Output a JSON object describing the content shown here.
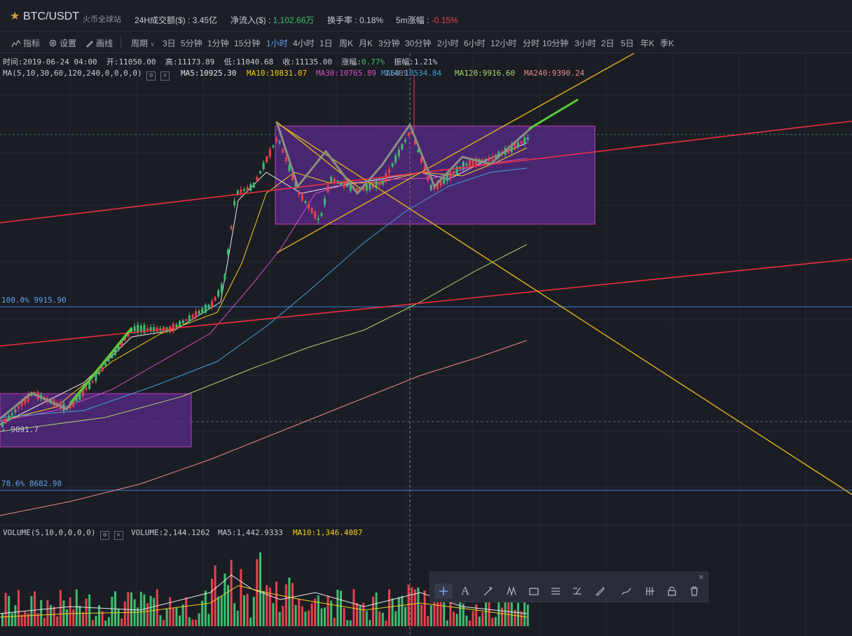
{
  "header": {
    "pair": "BTC/USDT",
    "site": "火币全球站",
    "stats": [
      {
        "label": "24H成交额($) : ",
        "value": "3.45亿",
        "tone": "v"
      },
      {
        "label": "净流入($) : ",
        "value": "1,102.66万",
        "tone": "g"
      },
      {
        "label": "换手率 : ",
        "value": "0.18%",
        "tone": "v"
      },
      {
        "label": "5m涨幅 : ",
        "value": "-0.15%",
        "tone": "r"
      }
    ]
  },
  "toolbar": {
    "indicator": "指标",
    "settings": "设置",
    "draw": "画线",
    "period": "周期",
    "periods": [
      "3日",
      "5分钟",
      "1分钟",
      "15分钟",
      "1小时",
      "4小时",
      "1日",
      "周K",
      "月K",
      "3分钟",
      "30分钟",
      "2小时",
      "6小时",
      "12小时",
      "分时",
      "10分钟",
      "3小时",
      "2日",
      "5日",
      "年K",
      "季K"
    ],
    "active_period": "1小时"
  },
  "ohlc": {
    "time": "时间:2019-06-24 04:00",
    "open": "开:11050.00",
    "high": "高:11173.89",
    "low": "低:11040.68",
    "close": "收:11135.00",
    "change_label": "涨幅:",
    "change_value": "0.77%",
    "amplitude": "振幅:1.21%"
  },
  "ma": {
    "title": "MA(5,10,30,60,120,240,0,0,0,0)",
    "ma5": "MA5:10925.30",
    "ma10": "MA10:10831.07",
    "ma30": "MA30:10765.89",
    "ma60": "MA60:10534.84",
    "ma120": "MA120:9916.60",
    "ma240": "MA240:9390.24",
    "overlap": "11489"
  },
  "fib": {
    "level100": "100.0% 9915.90",
    "level786": "78.6% 8682.98",
    "price_left": "9091.7"
  },
  "volume": {
    "title": "VOLUME(5,10,0,0,0,0)",
    "value": "VOLUME:2,144.1262",
    "ma5": "MA5:1,442.9333",
    "ma10": "MA10:1,346.4087"
  },
  "colors": {
    "up": "#3fbd6f",
    "down": "#e8414d",
    "ma5": "#e8e8e8",
    "ma10": "#f0d020",
    "ma30": "#d24fc4",
    "ma60": "#3fa0d8",
    "ma120": "#a8d36e",
    "ma240": "#e88a8a",
    "accent": "#5fa1ee"
  },
  "draw_tools": [
    "crosshair-icon",
    "text-icon",
    "pen-icon",
    "wave-icon",
    "rectangle-icon",
    "parallel-lines-icon",
    "fibonacci-icon",
    "ruler-icon",
    "brush-icon",
    "measure-icon",
    "lock-icon",
    "trash-icon"
  ]
}
